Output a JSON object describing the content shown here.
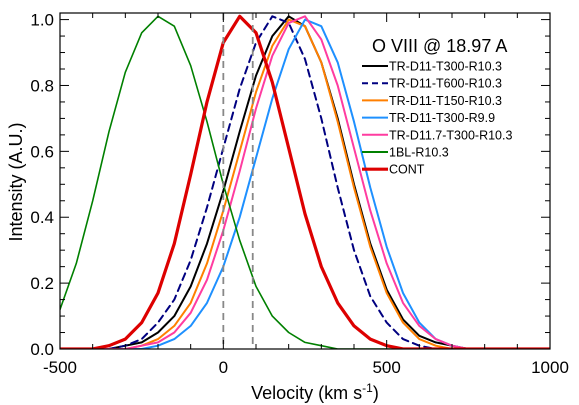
{
  "chart_data": {
    "type": "line",
    "xlabel": "Velocity (km s",
    "xlabel_sup": "-1",
    "xlabel_close": ")",
    "ylabel": "Intensity (A.U.)",
    "xlim": [
      -500,
      1000
    ],
    "ylim": [
      0,
      1.02
    ],
    "x_ticks": [
      -500,
      0,
      500,
      1000
    ],
    "x_tick_labels": [
      "-500",
      "0",
      "500",
      "1000"
    ],
    "y_ticks": [
      0.0,
      0.2,
      0.4,
      0.6,
      0.8,
      1.0
    ],
    "y_tick_labels": [
      "0.0",
      "0.2",
      "0.4",
      "0.6",
      "0.8",
      "1.0"
    ],
    "grid": false,
    "legend_title": "O VIII @ 18.97 A",
    "legend_position": "top-right",
    "vlines": [
      0,
      90
    ],
    "x": [
      -500,
      -450,
      -400,
      -350,
      -300,
      -250,
      -200,
      -150,
      -100,
      -50,
      0,
      50,
      100,
      150,
      200,
      250,
      300,
      350,
      400,
      450,
      500,
      550,
      600,
      650,
      700,
      750,
      800,
      850,
      900,
      950,
      1000
    ],
    "series": [
      {
        "name": "TR-D11-T300-R10.3",
        "color": "#000000",
        "dash": "solid",
        "width": 2,
        "values": [
          0,
          0,
          0,
          0,
          0.01,
          0.02,
          0.05,
          0.1,
          0.19,
          0.32,
          0.48,
          0.66,
          0.83,
          0.95,
          1.01,
          0.98,
          0.87,
          0.7,
          0.5,
          0.32,
          0.18,
          0.09,
          0.04,
          0.02,
          0.01,
          0,
          0,
          0,
          0,
          0,
          0
        ]
      },
      {
        "name": "TR-D11-T600-R10.3",
        "color": "#000080",
        "dash": "dashed",
        "width": 2,
        "values": [
          0,
          0,
          0,
          0,
          0.01,
          0.03,
          0.08,
          0.15,
          0.27,
          0.43,
          0.61,
          0.79,
          0.93,
          1.01,
          0.99,
          0.88,
          0.7,
          0.49,
          0.3,
          0.16,
          0.08,
          0.03,
          0.01,
          0,
          0,
          0,
          0,
          0,
          0,
          0,
          0
        ]
      },
      {
        "name": "TR-D11-T150-R10.3",
        "color": "#ff7f00",
        "dash": "solid",
        "width": 2,
        "values": [
          0,
          0,
          0,
          0,
          0,
          0.01,
          0.03,
          0.07,
          0.14,
          0.26,
          0.42,
          0.6,
          0.78,
          0.92,
          1.0,
          0.98,
          0.87,
          0.69,
          0.49,
          0.31,
          0.17,
          0.08,
          0.03,
          0.01,
          0,
          0,
          0,
          0,
          0,
          0,
          0
        ]
      },
      {
        "name": "TR-D11-T300-R9.9",
        "color": "#1e90ff",
        "dash": "solid",
        "width": 2,
        "values": [
          0,
          0,
          0,
          0,
          0,
          0,
          0.01,
          0.03,
          0.07,
          0.14,
          0.25,
          0.4,
          0.58,
          0.76,
          0.91,
          1.0,
          0.98,
          0.87,
          0.69,
          0.49,
          0.31,
          0.17,
          0.08,
          0.03,
          0.01,
          0,
          0,
          0,
          0,
          0,
          0
        ]
      },
      {
        "name": "TR-D11.7-T300-R10.3",
        "color": "#ff3ca0",
        "dash": "solid",
        "width": 2,
        "values": [
          0,
          0,
          0,
          0,
          0,
          0.01,
          0.02,
          0.05,
          0.11,
          0.21,
          0.36,
          0.54,
          0.73,
          0.89,
          0.99,
          1.01,
          0.94,
          0.8,
          0.61,
          0.42,
          0.26,
          0.14,
          0.07,
          0.03,
          0.01,
          0,
          0,
          0,
          0,
          0,
          0
        ]
      },
      {
        "name": "1BL-R10.3",
        "color": "#008000",
        "dash": "solid",
        "width": 1.6,
        "values": [
          0.12,
          0.26,
          0.45,
          0.66,
          0.84,
          0.96,
          1.01,
          0.98,
          0.86,
          0.69,
          0.5,
          0.33,
          0.19,
          0.1,
          0.05,
          0.02,
          0.01,
          0,
          0,
          0,
          0,
          0,
          0,
          0,
          0,
          0,
          0,
          0,
          0,
          0,
          0
        ]
      },
      {
        "name": "CONT",
        "color": "#dd0000",
        "dash": "solid",
        "width": 3.2,
        "values": [
          0,
          0,
          0,
          0.01,
          0.03,
          0.08,
          0.17,
          0.32,
          0.53,
          0.75,
          0.93,
          1.01,
          0.96,
          0.81,
          0.61,
          0.41,
          0.25,
          0.14,
          0.07,
          0.03,
          0.01,
          0,
          0,
          0,
          0,
          0,
          0,
          0,
          0,
          0,
          0
        ]
      }
    ]
  }
}
